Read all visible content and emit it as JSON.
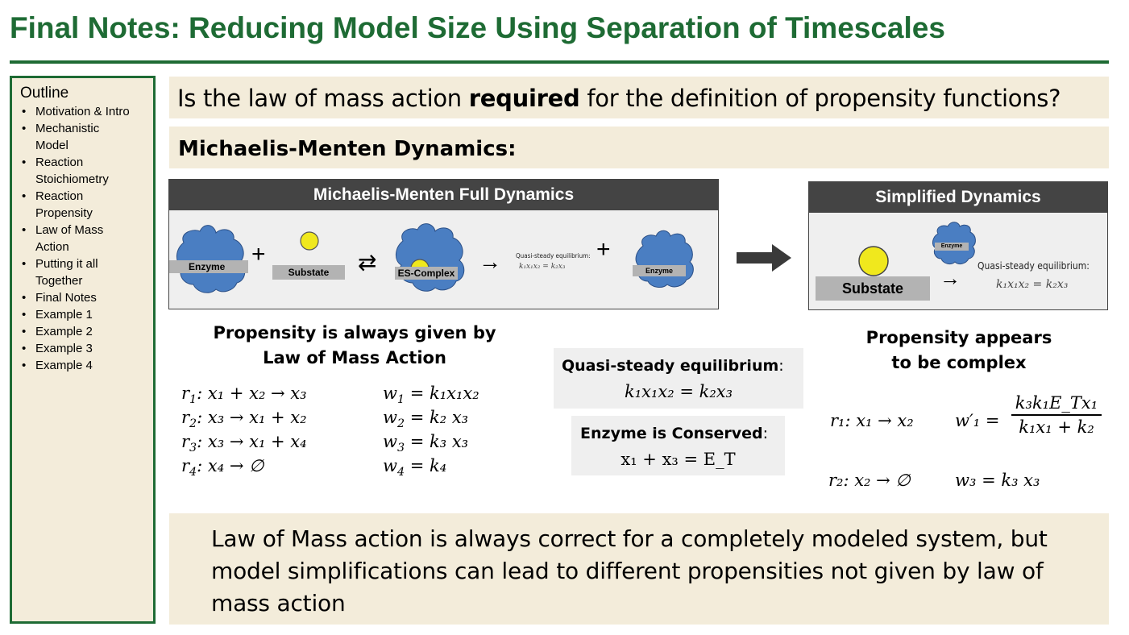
{
  "slide": {
    "title": "Final Notes: Reducing Model Size Using Separation of Timescales"
  },
  "outline": {
    "heading": "Outline",
    "items": [
      "Motivation & Intro",
      "Mechanistic",
      "Model",
      "Reaction",
      "Stoichiometry",
      "Reaction",
      "Propensity",
      "Law of Mass",
      "Action",
      "Putting it all",
      "Together",
      "Final Notes",
      "Example 1",
      "Example 2",
      "Example 3",
      "Example 4"
    ]
  },
  "question": {
    "prefix": "Is the law of mass action ",
    "bold": "required",
    "suffix": " for the definition of propensity functions?"
  },
  "section_heading": "Michaelis-Menten Dynamics:",
  "full_panel": {
    "title": "Michaelis-Menten Full Dynamics",
    "enzyme_label": "Enzyme",
    "plus": "+",
    "substrate_label": "Substate",
    "equilibrium_arrow": "⇄",
    "complex_label": "ES-Complex",
    "arrow": "→",
    "qse_small": "Quasi-steady equilibrium:",
    "qse_small_eq": "k₁x₁x₂ = k₂x₃",
    "plus2": "+",
    "enzyme_label2": "Enzyme"
  },
  "big_arrow": "➡",
  "simplified_panel": {
    "title": "Simplified Dynamics",
    "substrate_label": "Substate",
    "enzyme_label": "Enzyme",
    "arrow": "→",
    "qse_small": "Quasi-steady equilibrium:",
    "qse_small_eq": "k₁x₁x₂ = k₂x₃"
  },
  "left_caption": {
    "line1": "Propensity is always given by",
    "line2": "Law of Mass Action"
  },
  "reactions": [
    {
      "r": "r",
      "ri": "1",
      "lhs": "x₁ + x₂ → x₃",
      "w": "w",
      "wi": "1",
      "rhs": "k₁x₁x₂"
    },
    {
      "r": "r",
      "ri": "2",
      "lhs": "x₃ → x₁ + x₂",
      "w": "w",
      "wi": "2",
      "rhs": "k₂ x₃"
    },
    {
      "r": "r",
      "ri": "3",
      "lhs": "x₃ → x₁ + x₄",
      "w": "w",
      "wi": "3",
      "rhs": "k₃ x₃"
    },
    {
      "r": "r",
      "ri": "4",
      "lhs": "x₄ → ∅",
      "w": "w",
      "wi": "4",
      "rhs": "k₄"
    }
  ],
  "qse_box": {
    "title": "Quasi-steady equilibrium",
    "colon": ":",
    "eq": "k₁x₁x₂  =  k₂x₃"
  },
  "conserved_box": {
    "title": "Enzyme is Conserved",
    "colon": ":",
    "eq": "x₁ + x₃  =  E_T"
  },
  "right_caption": {
    "line1": "Propensity appears",
    "line2": "to be complex"
  },
  "simplified_reactions": {
    "r1": "r₁:  x₁ → x₂",
    "w1_lhs": "w′₁ =",
    "w1_num": "k₃k₁E_Tx₁",
    "w1_den": "k₁x₁ + k₂",
    "r2": "r₂:   x₂ → ∅",
    "w2": "w₃ =  k₃ x₃"
  },
  "conclusion": "Law of Mass action is always correct for a completely modeled system, but model simplifications can lead to different propensities not given by law of mass action",
  "colors": {
    "title_green": "#1e6b34",
    "band_beige": "#f3ecda",
    "panel_header": "#444444",
    "enzyme_blue": "#4a7ec2",
    "substrate_yellow": "#f0e81d"
  }
}
